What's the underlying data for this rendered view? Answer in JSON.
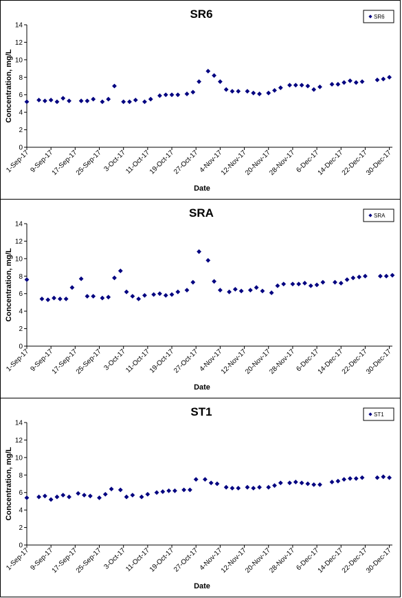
{
  "chart_data": [
    {
      "type": "scatter",
      "title": "SR6",
      "xlabel": "Date",
      "ylabel": "Concentration, mg/L",
      "ylim": [
        0,
        14
      ],
      "yticks": [
        0,
        2,
        4,
        6,
        8,
        10,
        12,
        14
      ],
      "xlim": [
        "2017-09-01",
        "2017-12-31"
      ],
      "xticks": [
        "1-Sep-17",
        "9-Sep-17",
        "17-Sep-17",
        "25-Sep-17",
        "3-Oct-17",
        "11-Oct-17",
        "19-Oct-17",
        "27-Oct-17",
        "4-Nov-17",
        "12-Nov-17",
        "20-Nov-17",
        "28-Nov-17",
        "6-Dec-17",
        "14-Dec-17",
        "22-Dec-17",
        "30-Dec-17"
      ],
      "grid": false,
      "legend": "top-right",
      "marker_color": "#000080",
      "series": [
        {
          "name": "SR6",
          "x": [
            "2017-09-01",
            "2017-09-05",
            "2017-09-07",
            "2017-09-09",
            "2017-09-11",
            "2017-09-13",
            "2017-09-15",
            "2017-09-19",
            "2017-09-21",
            "2017-09-23",
            "2017-09-26",
            "2017-09-28",
            "2017-09-30",
            "2017-10-03",
            "2017-10-05",
            "2017-10-07",
            "2017-10-10",
            "2017-10-12",
            "2017-10-15",
            "2017-10-17",
            "2017-10-19",
            "2017-10-21",
            "2017-10-24",
            "2017-10-26",
            "2017-10-28",
            "2017-10-31",
            "2017-11-02",
            "2017-11-04",
            "2017-11-06",
            "2017-11-08",
            "2017-11-10",
            "2017-11-13",
            "2017-11-15",
            "2017-11-17",
            "2017-11-20",
            "2017-11-22",
            "2017-11-24",
            "2017-11-27",
            "2017-11-29",
            "2017-12-01",
            "2017-12-03",
            "2017-12-05",
            "2017-12-07",
            "2017-12-11",
            "2017-12-13",
            "2017-12-15",
            "2017-12-17",
            "2017-12-19",
            "2017-12-21",
            "2017-12-26",
            "2017-12-28",
            "2017-12-30"
          ],
          "y": [
            5.2,
            5.4,
            5.3,
            5.4,
            5.2,
            5.6,
            5.3,
            5.3,
            5.3,
            5.5,
            5.2,
            5.5,
            7.0,
            5.2,
            5.2,
            5.4,
            5.2,
            5.5,
            5.9,
            6.0,
            6.0,
            6.0,
            6.1,
            6.3,
            7.5,
            8.7,
            8.2,
            7.5,
            6.6,
            6.4,
            6.4,
            6.4,
            6.2,
            6.1,
            6.2,
            6.5,
            6.8,
            7.1,
            7.1,
            7.1,
            7.0,
            6.6,
            6.9,
            7.2,
            7.2,
            7.4,
            7.6,
            7.4,
            7.5,
            7.7,
            7.8,
            8.0
          ]
        }
      ]
    },
    {
      "type": "scatter",
      "title": "SRA",
      "xlabel": "Date",
      "ylabel": "Concentration, mg/L",
      "ylim": [
        0,
        14
      ],
      "yticks": [
        0,
        2,
        4,
        6,
        8,
        10,
        12,
        14
      ],
      "xlim": [
        "2017-09-01",
        "2017-12-31"
      ],
      "xticks": [
        "1-Sep-17",
        "9-Sep-17",
        "17-Sep-17",
        "25-Sep-17",
        "3-Oct-17",
        "11-Oct-17",
        "19-Oct-17",
        "27-Oct-17",
        "4-Nov-17",
        "12-Nov-17",
        "20-Nov-17",
        "28-Nov-17",
        "6-Dec-17",
        "14-Dec-17",
        "22-Dec-17",
        "30-Dec-17"
      ],
      "grid": false,
      "legend": "top-right",
      "marker_color": "#000080",
      "series": [
        {
          "name": "SRA",
          "x": [
            "2017-09-01",
            "2017-09-06",
            "2017-09-08",
            "2017-09-10",
            "2017-09-12",
            "2017-09-14",
            "2017-09-16",
            "2017-09-19",
            "2017-09-21",
            "2017-09-23",
            "2017-09-26",
            "2017-09-28",
            "2017-09-30",
            "2017-10-02",
            "2017-10-04",
            "2017-10-06",
            "2017-10-08",
            "2017-10-10",
            "2017-10-13",
            "2017-10-15",
            "2017-10-17",
            "2017-10-19",
            "2017-10-21",
            "2017-10-24",
            "2017-10-26",
            "2017-10-28",
            "2017-10-31",
            "2017-11-02",
            "2017-11-04",
            "2017-11-07",
            "2017-11-09",
            "2017-11-11",
            "2017-11-14",
            "2017-11-16",
            "2017-11-18",
            "2017-11-21",
            "2017-11-23",
            "2017-11-25",
            "2017-11-28",
            "2017-11-30",
            "2017-12-02",
            "2017-12-04",
            "2017-12-06",
            "2017-12-08",
            "2017-12-12",
            "2017-12-14",
            "2017-12-16",
            "2017-12-18",
            "2017-12-20",
            "2017-12-22",
            "2017-12-27",
            "2017-12-29",
            "2017-12-31"
          ],
          "y": [
            7.6,
            5.4,
            5.3,
            5.5,
            5.4,
            5.4,
            6.7,
            7.7,
            5.7,
            5.7,
            5.5,
            5.6,
            7.8,
            8.6,
            6.2,
            5.7,
            5.4,
            5.8,
            5.9,
            6.0,
            5.8,
            5.9,
            6.2,
            6.4,
            7.3,
            10.8,
            9.8,
            7.4,
            6.4,
            6.2,
            6.5,
            6.3,
            6.4,
            6.7,
            6.3,
            6.1,
            6.9,
            7.1,
            7.1,
            7.1,
            7.2,
            6.9,
            7.0,
            7.3,
            7.3,
            7.2,
            7.6,
            7.8,
            7.9,
            8.0,
            8.0,
            8.0,
            8.1
          ]
        }
      ]
    },
    {
      "type": "scatter",
      "title": "ST1",
      "xlabel": "Date",
      "ylabel": "Concentration, mg/L",
      "ylim": [
        0,
        14
      ],
      "yticks": [
        0,
        2,
        4,
        6,
        8,
        10,
        12,
        14
      ],
      "xlim": [
        "2017-09-01",
        "2017-12-31"
      ],
      "xticks": [
        "1-Sep-17",
        "9-Sep-17",
        "17-Sep-17",
        "25-Sep-17",
        "3-Oct-17",
        "11-Oct-17",
        "19-Oct-17",
        "27-Oct-17",
        "4-Nov-17",
        "12-Nov-17",
        "20-Nov-17",
        "28-Nov-17",
        "6-Dec-17",
        "14-Dec-17",
        "22-Dec-17",
        "30-Dec-17"
      ],
      "grid": false,
      "legend": "top-right",
      "marker_color": "#000080",
      "series": [
        {
          "name": "ST1",
          "x": [
            "2017-09-01",
            "2017-09-05",
            "2017-09-07",
            "2017-09-09",
            "2017-09-11",
            "2017-09-13",
            "2017-09-15",
            "2017-09-18",
            "2017-09-20",
            "2017-09-22",
            "2017-09-25",
            "2017-09-27",
            "2017-09-29",
            "2017-10-02",
            "2017-10-04",
            "2017-10-06",
            "2017-10-09",
            "2017-10-11",
            "2017-10-14",
            "2017-10-16",
            "2017-10-18",
            "2017-10-20",
            "2017-10-23",
            "2017-10-25",
            "2017-10-27",
            "2017-10-30",
            "2017-11-01",
            "2017-11-03",
            "2017-11-06",
            "2017-11-08",
            "2017-11-10",
            "2017-11-13",
            "2017-11-15",
            "2017-11-17",
            "2017-11-20",
            "2017-11-22",
            "2017-11-24",
            "2017-11-27",
            "2017-11-29",
            "2017-12-01",
            "2017-12-03",
            "2017-12-05",
            "2017-12-07",
            "2017-12-11",
            "2017-12-13",
            "2017-12-15",
            "2017-12-17",
            "2017-12-19",
            "2017-12-21",
            "2017-12-26",
            "2017-12-28",
            "2017-12-30"
          ],
          "y": [
            5.4,
            5.5,
            5.6,
            5.2,
            5.5,
            5.7,
            5.5,
            5.9,
            5.7,
            5.6,
            5.4,
            5.8,
            6.4,
            6.3,
            5.5,
            5.7,
            5.5,
            5.8,
            6.0,
            6.1,
            6.2,
            6.2,
            6.3,
            6.3,
            7.5,
            7.5,
            7.1,
            7.0,
            6.6,
            6.5,
            6.5,
            6.6,
            6.5,
            6.6,
            6.6,
            6.8,
            7.1,
            7.1,
            7.2,
            7.1,
            7.0,
            6.9,
            6.9,
            7.2,
            7.3,
            7.5,
            7.6,
            7.6,
            7.7,
            7.7,
            7.8,
            7.7
          ]
        }
      ]
    }
  ]
}
